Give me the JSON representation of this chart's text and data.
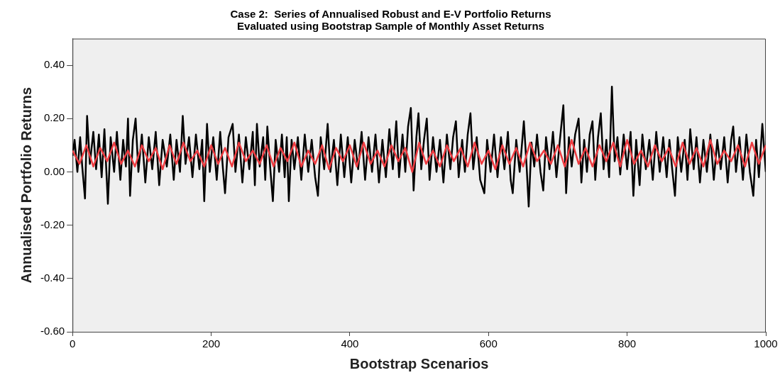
{
  "chart_data": {
    "type": "line",
    "title": "Case 2:  Series of Annualised Robust and E-V Portfolio Returns\nEvaluated using Bootstrap Sample of Monthly Asset Returns",
    "xlabel": "Bootstrap Scenarios",
    "ylabel": "Annualised Portfolio Returns",
    "xlim": [
      0,
      1000
    ],
    "xticks": [
      0,
      200,
      400,
      600,
      800,
      1000
    ],
    "ylim": [
      -0.6,
      0.5
    ],
    "yticks": [
      {
        "value": -0.6,
        "label": "-0.60"
      },
      {
        "value": -0.4,
        "label": "-0.40"
      },
      {
        "value": -0.2,
        "label": "-0.20"
      },
      {
        "value": 0,
        "label": "0.00"
      },
      {
        "value": 0.2,
        "label": "0.20"
      },
      {
        "value": 0.4,
        "label": "0.40"
      }
    ],
    "grid": false,
    "legend": false,
    "marker": "none",
    "line_style": "solid",
    "series": [
      {
        "color": "#000000",
        "x": [
          0,
          3,
          7,
          11,
          14,
          18,
          21,
          25,
          30,
          34,
          38,
          42,
          46,
          51,
          55,
          60,
          64,
          69,
          73,
          77,
          80,
          83,
          87,
          91,
          95,
          100,
          105,
          110,
          115,
          120,
          125,
          130,
          136,
          141,
          146,
          150,
          155,
          159,
          163,
          168,
          173,
          178,
          183,
          187,
          190,
          194,
          198,
          203,
          208,
          213,
          217,
          220,
          225,
          231,
          235,
          240,
          245,
          250,
          255,
          260,
          263,
          266,
          270,
          275,
          278,
          281,
          285,
          289,
          293,
          298,
          302,
          306,
          309,
          312,
          316,
          320,
          325,
          330,
          335,
          340,
          345,
          350,
          354,
          358,
          363,
          368,
          372,
          377,
          382,
          387,
          392,
          397,
          402,
          407,
          412,
          417,
          422,
          427,
          432,
          437,
          442,
          447,
          452,
          457,
          462,
          467,
          471,
          476,
          480,
          484,
          488,
          492,
          496,
          499,
          503,
          507,
          511,
          515,
          520,
          525,
          530,
          535,
          540,
          545,
          549,
          553,
          557,
          562,
          566,
          570,
          574,
          578,
          583,
          588,
          594,
          598,
          603,
          608,
          613,
          618,
          623,
          628,
          632,
          635,
          640,
          645,
          651,
          655,
          658,
          662,
          666,
          670,
          675,
          679,
          683,
          688,
          693,
          698,
          703,
          708,
          712,
          716,
          720,
          725,
          730,
          734,
          738,
          742,
          746,
          750,
          754,
          758,
          762,
          766,
          770,
          774,
          778,
          782,
          786,
          790,
          795,
          800,
          805,
          809,
          813,
          818,
          822,
          827,
          832,
          837,
          842,
          847,
          852,
          857,
          861,
          865,
          869,
          873,
          878,
          883,
          887,
          891,
          896,
          900,
          905,
          910,
          915,
          920,
          925,
          930,
          935,
          940,
          945,
          950,
          953,
          957,
          962,
          967,
          972,
          977,
          982,
          986,
          990,
          995,
          1000
        ],
        "values": [
          0.06,
          0.12,
          0.0,
          0.13,
          0.02,
          -0.1,
          0.21,
          0.03,
          0.15,
          0.01,
          0.14,
          -0.02,
          0.16,
          -0.12,
          0.13,
          0.0,
          0.15,
          -0.03,
          0.12,
          0.02,
          0.2,
          -0.09,
          0.12,
          0.2,
          0.0,
          0.14,
          -0.04,
          0.13,
          0.01,
          0.15,
          -0.05,
          0.12,
          0.02,
          0.14,
          -0.03,
          0.12,
          0.0,
          0.21,
          0.03,
          0.13,
          -0.02,
          0.14,
          0.01,
          0.12,
          -0.11,
          0.18,
          0.0,
          0.13,
          -0.03,
          0.15,
          0.01,
          -0.08,
          0.13,
          0.18,
          0.0,
          0.14,
          -0.04,
          0.13,
          0.01,
          0.15,
          -0.05,
          0.18,
          0.02,
          0.13,
          -0.03,
          0.17,
          0.02,
          -0.11,
          0.12,
          0.0,
          0.14,
          -0.02,
          0.13,
          -0.11,
          0.12,
          0.01,
          0.13,
          -0.03,
          0.14,
          0.0,
          0.12,
          -0.02,
          -0.09,
          0.13,
          0.01,
          0.18,
          0.0,
          0.12,
          -0.05,
          0.14,
          -0.02,
          0.13,
          -0.04,
          0.12,
          0.01,
          0.15,
          -0.03,
          0.13,
          0.0,
          0.14,
          -0.04,
          0.12,
          -0.02,
          0.16,
          0.01,
          0.19,
          -0.02,
          0.14,
          0.0,
          0.17,
          0.24,
          -0.07,
          0.13,
          0.22,
          0.01,
          0.12,
          0.2,
          -0.03,
          0.13,
          0.0,
          0.12,
          -0.04,
          0.14,
          0.01,
          0.13,
          0.19,
          -0.02,
          0.12,
          0.0,
          0.14,
          0.22,
          0.01,
          0.13,
          -0.03,
          -0.08,
          0.12,
          0.0,
          0.14,
          -0.02,
          0.13,
          0.01,
          0.15,
          -0.03,
          -0.08,
          0.12,
          0.0,
          0.19,
          0.02,
          -0.13,
          0.11,
          0.02,
          0.14,
          0.0,
          -0.07,
          0.13,
          0.01,
          0.15,
          -0.02,
          0.12,
          0.25,
          -0.08,
          0.13,
          0.02,
          0.14,
          0.2,
          -0.04,
          0.12,
          0.0,
          0.14,
          0.19,
          -0.03,
          0.13,
          0.22,
          0.01,
          0.12,
          -0.02,
          0.32,
          0.04,
          0.13,
          -0.01,
          0.14,
          0.01,
          0.15,
          -0.09,
          0.12,
          -0.05,
          0.14,
          0.01,
          0.12,
          -0.03,
          0.15,
          0.0,
          0.13,
          -0.02,
          0.12,
          0.01,
          -0.09,
          0.13,
          0.0,
          0.12,
          -0.03,
          0.16,
          0.01,
          0.13,
          -0.04,
          0.12,
          0.0,
          0.14,
          -0.03,
          0.12,
          0.01,
          0.13,
          -0.04,
          0.12,
          0.17,
          0.0,
          0.13,
          -0.03,
          0.14,
          0.0,
          -0.09,
          0.12,
          -0.02,
          0.18,
          0.0
        ]
      },
      {
        "color": "#ee3b40",
        "x": [
          0,
          10,
          20,
          30,
          40,
          50,
          60,
          70,
          80,
          90,
          100,
          110,
          120,
          130,
          140,
          150,
          160,
          170,
          180,
          190,
          200,
          210,
          220,
          230,
          240,
          250,
          260,
          270,
          280,
          290,
          300,
          310,
          320,
          330,
          340,
          350,
          360,
          370,
          380,
          390,
          400,
          410,
          420,
          430,
          440,
          450,
          460,
          470,
          480,
          490,
          500,
          510,
          520,
          530,
          540,
          550,
          560,
          570,
          580,
          590,
          600,
          610,
          620,
          630,
          640,
          650,
          660,
          670,
          680,
          690,
          700,
          710,
          720,
          730,
          740,
          750,
          760,
          770,
          780,
          790,
          800,
          810,
          820,
          830,
          840,
          850,
          860,
          870,
          880,
          890,
          900,
          910,
          920,
          930,
          940,
          950,
          960,
          970,
          980,
          990,
          1000
        ],
        "values": [
          0.08,
          0.03,
          0.1,
          0.02,
          0.09,
          0.04,
          0.11,
          0.03,
          0.08,
          0.02,
          0.1,
          0.04,
          0.09,
          0.01,
          0.1,
          0.03,
          0.11,
          0.04,
          0.08,
          0.02,
          0.1,
          0.03,
          0.09,
          0.02,
          0.11,
          0.04,
          0.08,
          0.03,
          0.1,
          0.02,
          0.09,
          0.04,
          0.11,
          0.02,
          0.08,
          0.03,
          0.1,
          0.01,
          0.09,
          0.04,
          0.1,
          0.02,
          0.11,
          0.03,
          0.08,
          0.02,
          0.1,
          0.04,
          0.09,
          0.0,
          0.11,
          0.03,
          0.08,
          0.02,
          0.1,
          0.04,
          0.09,
          0.02,
          0.11,
          0.03,
          0.08,
          0.01,
          0.1,
          0.03,
          0.09,
          0.02,
          0.11,
          0.04,
          0.08,
          0.03,
          0.1,
          0.02,
          0.12,
          0.03,
          0.09,
          0.02,
          0.1,
          0.04,
          0.11,
          0.02,
          0.12,
          0.03,
          0.08,
          0.02,
          0.1,
          0.04,
          0.09,
          0.02,
          0.11,
          0.03,
          0.09,
          0.02,
          0.12,
          0.03,
          0.08,
          0.04,
          0.1,
          0.02,
          0.11,
          0.03,
          0.1
        ]
      }
    ]
  }
}
